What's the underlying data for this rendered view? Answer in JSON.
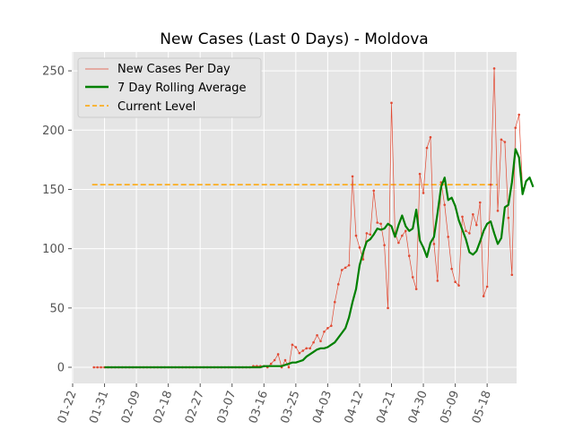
{
  "chart_data": {
    "type": "line",
    "title": "New Cases (Last 0 Days) - Moldova",
    "xlabel": "",
    "ylabel": "",
    "x_start_date": "01-22",
    "xticks": [
      "01-22",
      "01-31",
      "02-09",
      "02-18",
      "02-27",
      "03-07",
      "03-16",
      "03-25",
      "04-03",
      "04-12",
      "04-21",
      "04-30",
      "05-09",
      "05-18"
    ],
    "yticks": [
      0,
      50,
      100,
      150,
      200,
      250
    ],
    "ylim": [
      -12,
      264
    ],
    "grid": true,
    "legend_position": "top-left",
    "current_level": 154,
    "series": [
      {
        "name": "New Cases Per Day",
        "color": "#E24A33",
        "style": "thin-line-with-points",
        "values": [
          0,
          0,
          0,
          0,
          0,
          0,
          0,
          0,
          0,
          0,
          0,
          0,
          0,
          0,
          0,
          0,
          0,
          0,
          0,
          0,
          0,
          0,
          0,
          0,
          0,
          0,
          0,
          0,
          0,
          0,
          0,
          0,
          0,
          0,
          0,
          0,
          0,
          0,
          0,
          0,
          0,
          0,
          0,
          0,
          0,
          1,
          1,
          1,
          1,
          0,
          3,
          6,
          11,
          0,
          6,
          0,
          19,
          17,
          12,
          14,
          16,
          16,
          21,
          27,
          22,
          30,
          33,
          35,
          55,
          70,
          82,
          84,
          86,
          161,
          111,
          101,
          91,
          113,
          112,
          149,
          122,
          121,
          103,
          50,
          223,
          113,
          105,
          111,
          115,
          94,
          76,
          66,
          163,
          147,
          185,
          194,
          104,
          73,
          156,
          137,
          110,
          83,
          72,
          69,
          127,
          115,
          113,
          129,
          120,
          139,
          60,
          68,
          154,
          252,
          132,
          192,
          190,
          126,
          78,
          202,
          213,
          151
        ]
      },
      {
        "name": "7 Day Rolling Average",
        "color": "#008000",
        "style": "thick-line",
        "start_day": 6,
        "values": [
          0,
          0,
          0,
          0,
          0,
          0,
          0,
          0,
          0,
          0,
          0,
          0,
          0,
          0,
          0,
          0,
          0,
          0,
          0,
          0,
          0,
          0,
          0,
          0,
          0,
          0,
          0,
          0,
          0,
          0,
          0,
          0,
          0,
          0,
          0,
          0,
          0,
          0,
          0,
          0,
          0,
          0,
          0,
          0,
          0,
          1,
          1,
          1,
          1,
          1,
          1,
          2,
          3,
          4,
          4,
          5,
          6,
          9,
          11,
          13,
          15,
          16,
          16,
          17,
          19,
          21,
          25,
          29,
          33,
          42,
          55,
          66,
          86,
          97,
          106,
          108,
          112,
          117,
          116,
          117,
          121,
          119,
          110,
          120,
          128,
          119,
          115,
          117,
          133,
          107,
          101,
          93,
          105,
          110,
          130,
          152,
          160,
          141,
          143,
          136,
          124,
          116,
          108,
          97,
          95,
          98,
          106,
          115,
          121,
          123,
          113,
          104,
          109,
          135,
          137,
          156,
          184,
          177,
          146,
          157,
          160,
          152
        ]
      },
      {
        "name": "Current Level",
        "color": "#FFA500",
        "style": "dashed",
        "value": 154
      }
    ]
  }
}
